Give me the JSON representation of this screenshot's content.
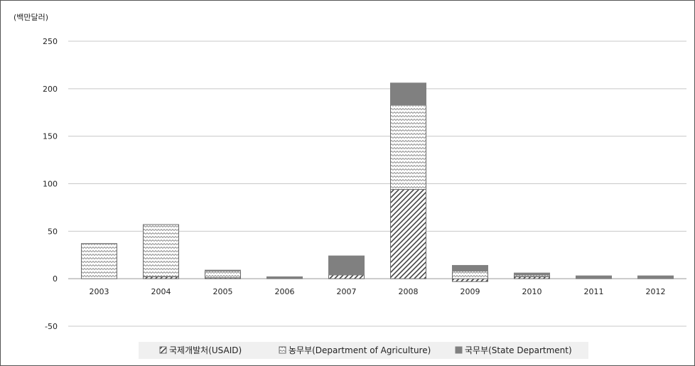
{
  "chart_data": {
    "type": "bar",
    "stacked": true,
    "unit_label": "(백만달러)",
    "title": "",
    "xlabel": "",
    "ylabel": "",
    "categories": [
      "2003",
      "2004",
      "2005",
      "2006",
      "2007",
      "2008",
      "2009",
      "2010",
      "2011",
      "2012"
    ],
    "ylim": [
      -50,
      250
    ],
    "yticks": [
      250,
      200,
      150,
      100,
      50,
      0,
      -50
    ],
    "grid": true,
    "legend_position": "bottom",
    "series": [
      {
        "name": "국제개발처(USAID)",
        "pattern": "diagonal-hatch",
        "values": [
          0,
          2,
          1,
          0,
          4,
          94,
          -3,
          2,
          0,
          0
        ]
      },
      {
        "name": "농무부(Department of Agriculture)",
        "pattern": "zigzag",
        "values": [
          37,
          55,
          7,
          0,
          0,
          89,
          8,
          2,
          0,
          0
        ]
      },
      {
        "name": "국무부(State Department)",
        "color": "#808080",
        "values": [
          0,
          0,
          1,
          2,
          20,
          23,
          6,
          2,
          3,
          3
        ]
      }
    ]
  }
}
